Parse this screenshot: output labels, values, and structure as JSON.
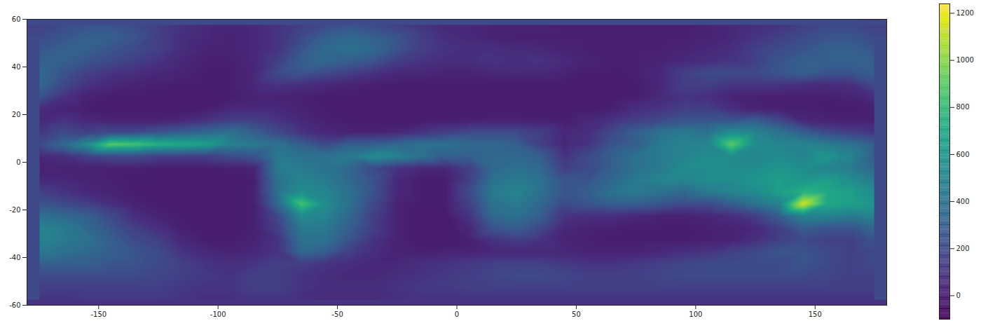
{
  "chart_data": {
    "type": "heatmap",
    "xlim": [
      -180,
      180
    ],
    "xticks": [
      -150,
      -100,
      -50,
      0,
      50,
      100,
      150
    ],
    "ylim": [
      -60,
      60
    ],
    "yticks": [
      -60,
      -40,
      -20,
      0,
      20,
      40,
      60
    ],
    "color": "viridis",
    "colorbar": {
      "range": [
        -100,
        1240
      ],
      "ticks": [
        0,
        200,
        400,
        600,
        800,
        1000,
        1200
      ]
    },
    "x": [
      -175,
      -165,
      -155,
      -145,
      -135,
      -125,
      -115,
      -105,
      -95,
      -85,
      -75,
      -65,
      -55,
      -45,
      -35,
      -25,
      -15,
      -5,
      5,
      15,
      25,
      35,
      45,
      55,
      65,
      75,
      85,
      95,
      105,
      115,
      125,
      135,
      145,
      155,
      165,
      175
    ],
    "y": [
      57.5,
      52.5,
      47.5,
      42.5,
      37.5,
      32.5,
      27.5,
      22.5,
      17.5,
      12.5,
      7.5,
      2.5,
      -2.5,
      -7.5,
      -12.5,
      -17.5,
      -22.5,
      -27.5,
      -32.5,
      -37.5,
      -42.5,
      -47.5,
      -52.5,
      -57.5
    ],
    "values": [
      [
        150,
        200,
        250,
        250,
        200,
        150,
        100,
        50,
        50,
        50,
        100,
        150,
        200,
        250,
        200,
        150,
        100,
        50,
        50,
        30,
        30,
        30,
        20,
        20,
        20,
        20,
        20,
        20,
        30,
        50,
        80,
        100,
        150,
        200,
        200,
        150
      ],
      [
        200,
        250,
        300,
        300,
        250,
        150,
        80,
        50,
        30,
        50,
        100,
        200,
        300,
        350,
        300,
        250,
        150,
        80,
        50,
        30,
        20,
        20,
        20,
        20,
        20,
        20,
        20,
        20,
        30,
        50,
        100,
        150,
        200,
        250,
        250,
        200
      ],
      [
        250,
        300,
        300,
        250,
        200,
        150,
        80,
        30,
        30,
        50,
        100,
        250,
        350,
        400,
        350,
        250,
        150,
        100,
        80,
        80,
        60,
        50,
        30,
        20,
        20,
        20,
        20,
        30,
        50,
        80,
        150,
        200,
        250,
        300,
        300,
        250
      ],
      [
        300,
        300,
        250,
        200,
        150,
        100,
        50,
        20,
        20,
        50,
        150,
        300,
        350,
        300,
        250,
        150,
        100,
        80,
        80,
        100,
        80,
        100,
        60,
        30,
        20,
        20,
        30,
        50,
        80,
        100,
        150,
        250,
        300,
        300,
        300,
        300
      ],
      [
        350,
        250,
        150,
        100,
        80,
        50,
        30,
        10,
        10,
        50,
        200,
        250,
        200,
        150,
        100,
        50,
        50,
        30,
        30,
        50,
        50,
        50,
        30,
        10,
        10,
        20,
        50,
        150,
        200,
        200,
        200,
        250,
        300,
        250,
        250,
        300
      ],
      [
        350,
        200,
        100,
        50,
        30,
        20,
        10,
        10,
        10,
        50,
        100,
        80,
        50,
        30,
        20,
        10,
        10,
        10,
        10,
        10,
        10,
        10,
        10,
        0,
        0,
        10,
        50,
        150,
        150,
        100,
        100,
        100,
        80,
        60,
        80,
        200
      ],
      [
        250,
        100,
        30,
        10,
        10,
        0,
        0,
        0,
        10,
        30,
        30,
        20,
        10,
        10,
        0,
        0,
        0,
        0,
        0,
        0,
        0,
        0,
        0,
        0,
        0,
        10,
        60,
        100,
        80,
        30,
        20,
        20,
        20,
        20,
        30,
        80
      ],
      [
        80,
        30,
        10,
        0,
        0,
        0,
        0,
        10,
        50,
        50,
        50,
        30,
        10,
        0,
        0,
        0,
        0,
        0,
        0,
        0,
        0,
        0,
        0,
        0,
        20,
        80,
        100,
        150,
        150,
        80,
        30,
        20,
        20,
        10,
        10,
        20
      ],
      [
        50,
        100,
        50,
        30,
        30,
        30,
        50,
        100,
        150,
        150,
        100,
        50,
        20,
        10,
        0,
        0,
        0,
        10,
        20,
        30,
        30,
        20,
        10,
        50,
        100,
        150,
        200,
        250,
        250,
        250,
        300,
        200,
        50,
        30,
        20,
        20
      ],
      [
        100,
        200,
        150,
        200,
        200,
        250,
        300,
        350,
        400,
        300,
        200,
        100,
        50,
        30,
        30,
        50,
        100,
        150,
        200,
        200,
        200,
        150,
        50,
        80,
        200,
        300,
        400,
        450,
        400,
        550,
        500,
        400,
        300,
        200,
        150,
        100
      ],
      [
        200,
        350,
        550,
        900,
        850,
        750,
        700,
        650,
        500,
        450,
        400,
        300,
        200,
        300,
        300,
        350,
        400,
        400,
        350,
        350,
        300,
        150,
        50,
        100,
        250,
        300,
        450,
        500,
        500,
        900,
        550,
        500,
        500,
        450,
        400,
        300
      ],
      [
        50,
        80,
        150,
        200,
        200,
        150,
        150,
        150,
        200,
        250,
        450,
        400,
        400,
        450,
        550,
        500,
        400,
        300,
        300,
        350,
        350,
        300,
        100,
        200,
        300,
        400,
        450,
        500,
        550,
        550,
        500,
        550,
        500,
        600,
        500,
        300
      ],
      [
        30,
        30,
        30,
        20,
        20,
        10,
        10,
        10,
        20,
        30,
        450,
        450,
        400,
        350,
        200,
        100,
        50,
        50,
        150,
        350,
        400,
        350,
        150,
        200,
        300,
        400,
        450,
        550,
        550,
        550,
        550,
        600,
        550,
        500,
        450,
        350
      ],
      [
        50,
        50,
        30,
        20,
        10,
        10,
        0,
        0,
        0,
        10,
        400,
        500,
        450,
        350,
        250,
        50,
        10,
        10,
        150,
        400,
        450,
        400,
        250,
        250,
        350,
        450,
        500,
        500,
        550,
        550,
        600,
        650,
        600,
        650,
        550,
        450
      ],
      [
        150,
        100,
        50,
        30,
        10,
        0,
        0,
        0,
        0,
        20,
        400,
        550,
        500,
        400,
        250,
        50,
        10,
        10,
        200,
        450,
        500,
        400,
        250,
        300,
        400,
        450,
        400,
        350,
        450,
        500,
        550,
        650,
        750,
        700,
        650,
        550
      ],
      [
        250,
        200,
        150,
        80,
        30,
        10,
        0,
        0,
        0,
        20,
        350,
        850,
        550,
        400,
        200,
        30,
        10,
        10,
        150,
        400,
        450,
        350,
        200,
        250,
        300,
        300,
        250,
        200,
        200,
        300,
        400,
        500,
        1150,
        700,
        650,
        600
      ],
      [
        400,
        350,
        300,
        200,
        80,
        30,
        10,
        0,
        0,
        20,
        200,
        550,
        500,
        350,
        150,
        30,
        0,
        0,
        100,
        350,
        400,
        300,
        100,
        80,
        80,
        50,
        30,
        30,
        40,
        80,
        150,
        300,
        500,
        500,
        450,
        500
      ],
      [
        500,
        450,
        350,
        250,
        150,
        80,
        20,
        0,
        0,
        20,
        150,
        450,
        450,
        300,
        150,
        30,
        0,
        0,
        50,
        250,
        300,
        200,
        50,
        30,
        20,
        10,
        10,
        10,
        20,
        30,
        50,
        150,
        300,
        250,
        250,
        350
      ],
      [
        500,
        450,
        400,
        300,
        200,
        150,
        50,
        10,
        10,
        30,
        100,
        400,
        400,
        250,
        100,
        30,
        0,
        0,
        20,
        100,
        150,
        100,
        30,
        20,
        10,
        10,
        10,
        10,
        20,
        30,
        80,
        150,
        200,
        150,
        150,
        250
      ],
      [
        450,
        400,
        350,
        300,
        250,
        200,
        100,
        50,
        30,
        50,
        100,
        350,
        300,
        150,
        80,
        30,
        20,
        30,
        30,
        50,
        50,
        50,
        50,
        30,
        30,
        30,
        50,
        80,
        100,
        150,
        200,
        250,
        250,
        200,
        150,
        200
      ],
      [
        300,
        300,
        300,
        250,
        250,
        200,
        150,
        100,
        80,
        100,
        150,
        150,
        100,
        80,
        50,
        50,
        80,
        100,
        120,
        150,
        150,
        150,
        120,
        100,
        100,
        120,
        150,
        180,
        200,
        200,
        200,
        200,
        250,
        200,
        150,
        200
      ],
      [
        200,
        200,
        200,
        200,
        200,
        180,
        150,
        120,
        100,
        150,
        150,
        100,
        80,
        50,
        50,
        80,
        100,
        120,
        150,
        180,
        200,
        200,
        180,
        150,
        150,
        150,
        180,
        200,
        200,
        200,
        200,
        200,
        200,
        180,
        150,
        150
      ],
      [
        150,
        150,
        150,
        150,
        150,
        150,
        120,
        100,
        100,
        150,
        150,
        100,
        80,
        80,
        80,
        100,
        120,
        120,
        150,
        150,
        150,
        150,
        150,
        150,
        150,
        150,
        150,
        150,
        150,
        150,
        150,
        150,
        150,
        150,
        150,
        150
      ],
      [
        100,
        100,
        120,
        120,
        120,
        120,
        100,
        80,
        80,
        100,
        100,
        80,
        60,
        60,
        60,
        80,
        100,
        100,
        100,
        100,
        100,
        100,
        100,
        100,
        100,
        100,
        100,
        100,
        100,
        100,
        100,
        100,
        100,
        100,
        100,
        100
      ]
    ]
  }
}
